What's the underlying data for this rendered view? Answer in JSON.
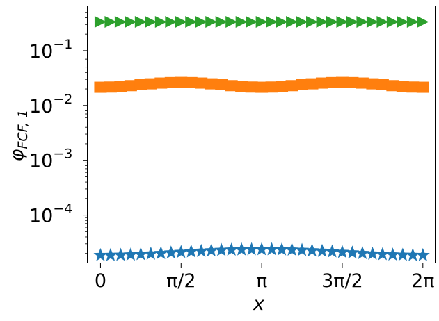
{
  "chart_data": {
    "type": "scatter",
    "title": "",
    "xlabel": "x",
    "ylabel": "φ_{FCF,1}",
    "xlim": [
      -0.25,
      6.53
    ],
    "ylim_log10": [
      -4.88,
      -0.19
    ],
    "yscale": "log",
    "grid": false,
    "legend": "none",
    "x_ticks": [
      {
        "value": 0,
        "label": "0"
      },
      {
        "value": 1.5708,
        "label": "π/2"
      },
      {
        "value": 3.1416,
        "label": "π"
      },
      {
        "value": 4.7124,
        "label": "3π/2"
      },
      {
        "value": 6.2832,
        "label": "2π"
      }
    ],
    "y_ticks": [
      {
        "exp": -1,
        "label_base": "10",
        "label_exp": "−1"
      },
      {
        "exp": -2,
        "label_base": "10",
        "label_exp": "−2"
      },
      {
        "exp": -3,
        "label_base": "10",
        "label_exp": "−3"
      },
      {
        "exp": -4,
        "label_base": "10",
        "label_exp": "−4"
      }
    ],
    "series": [
      {
        "marker": "star",
        "color": "#1f77b4",
        "n": 33,
        "base": 1.85e-05,
        "amp": 0.28,
        "wave": "cos1"
      },
      {
        "marker": "square",
        "color": "#ff7f0e",
        "n": 33,
        "base": 0.0215,
        "amp": 0.125,
        "wave": "cos2"
      },
      {
        "marker": "triangle-right",
        "color": "#2ca02c",
        "n": 33,
        "base": 0.335,
        "amp": 0.0,
        "wave": "flat"
      }
    ]
  }
}
